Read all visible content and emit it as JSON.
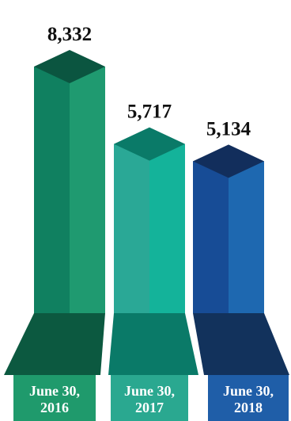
{
  "chart_data": {
    "type": "bar",
    "categories": [
      "June 30, 2016",
      "June 30, 2017",
      "June 30, 2018"
    ],
    "category_lines": [
      [
        "June 30,",
        "2016"
      ],
      [
        "June 30,",
        "2017"
      ],
      [
        "June 30,",
        "2018"
      ]
    ],
    "values": [
      8332,
      5717,
      5134
    ],
    "value_labels": [
      "8,332",
      "5,717",
      "5,134"
    ],
    "ylim": [
      0,
      8332
    ],
    "grid": false,
    "legend": "none",
    "colors": [
      {
        "front": "#108060",
        "side": "#1f9a70",
        "top": "#0b5540",
        "base": "#0c5940",
        "base_label": "#1f9a6c"
      },
      {
        "front": "#2aa896",
        "side": "#14b39a",
        "top": "#0a7a68",
        "base": "#0a7a68",
        "base_label": "#2aa890"
      },
      {
        "front": "#174c96",
        "side": "#1e68b0",
        "top": "#122e5c",
        "base": "#12325c",
        "base_label": "#1f5ea8"
      }
    ]
  }
}
